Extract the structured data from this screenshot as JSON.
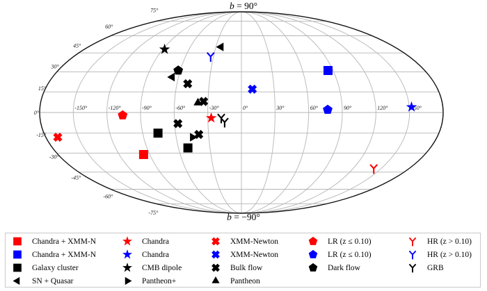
{
  "figure": {
    "title_top": {
      "var": "b",
      "rest": " = 90°"
    },
    "title_bottom": {
      "var": "b",
      "rest": " = −90°"
    }
  },
  "style": {
    "red": "#ff0000",
    "blue": "#0000ff",
    "black": "#000000",
    "grid_color": "#b5b5b5",
    "outline_color": "#111111",
    "legend_border": "#c9c9c9"
  },
  "chart_data": {
    "type": "scatter",
    "projection": "mollweide",
    "grid": {
      "lon_step": 30,
      "lat_step": 15,
      "lon_range": [
        -180,
        180
      ],
      "lat_range": [
        -90,
        90
      ]
    },
    "lon_tick_labels": [
      {
        "value": -150,
        "label": "-150°"
      },
      {
        "value": -120,
        "label": "-120°"
      },
      {
        "value": -90,
        "label": "-90°"
      },
      {
        "value": -60,
        "label": "-60°"
      },
      {
        "value": -30,
        "label": "-30°"
      },
      {
        "value": 0,
        "label": "0°"
      },
      {
        "value": 30,
        "label": "30°"
      },
      {
        "value": 60,
        "label": "60°"
      },
      {
        "value": 90,
        "label": "90°"
      },
      {
        "value": 120,
        "label": "120°"
      },
      {
        "value": 150,
        "label": "150°"
      }
    ],
    "lat_tick_labels": [
      {
        "value": 75,
        "label": "75°"
      },
      {
        "value": 60,
        "label": "60°"
      },
      {
        "value": 45,
        "label": "45°"
      },
      {
        "value": 30,
        "label": "30°"
      },
      {
        "value": 15,
        "label": "15°"
      },
      {
        "value": 0,
        "label": "0°"
      },
      {
        "value": -15,
        "label": "-15°"
      },
      {
        "value": -30,
        "label": "-30°"
      },
      {
        "value": -45,
        "label": "-45°"
      },
      {
        "value": -60,
        "label": "-60°"
      },
      {
        "value": -75,
        "label": "-75°"
      }
    ],
    "points": [
      {
        "series": "XMM-Newton",
        "marker": "x",
        "color": "#ff0000",
        "lon": -169,
        "lat": -18
      },
      {
        "series": "LR (z ≤ 0.10)",
        "marker": "pentagon",
        "color": "#ff0000",
        "lon": -106,
        "lat": -2
      },
      {
        "series": "Chandra + XMM-N",
        "marker": "square",
        "color": "#ff0000",
        "lon": -96,
        "lat": -31
      },
      {
        "series": "Chandra",
        "marker": "star",
        "color": "#ff0000",
        "lon": -27,
        "lat": -4
      },
      {
        "series": "HR (z > 0.10)",
        "marker": "y",
        "color": "#ff0000",
        "lon": 142,
        "lat": -42
      },
      {
        "series": "Chandra + XMM-N",
        "marker": "square",
        "color": "#0000ff",
        "lon": 85,
        "lat": 31
      },
      {
        "series": "XMM-Newton",
        "marker": "x",
        "color": "#0000ff",
        "lon": 10,
        "lat": 17
      },
      {
        "series": "LR (z ≤ 0.10)",
        "marker": "pentagon",
        "color": "#0000ff",
        "lon": 77,
        "lat": 2
      },
      {
        "series": "Chandra",
        "marker": "star",
        "color": "#0000ff",
        "lon": 152,
        "lat": 4
      },
      {
        "series": "HR (z > 0.10)",
        "marker": "y",
        "color": "#0000ff",
        "lon": -33,
        "lat": 42
      },
      {
        "series": "CMB dipole",
        "marker": "star",
        "color": "#000000",
        "lon": -88,
        "lat": 48
      },
      {
        "series": "SN + Quasar",
        "marker": "tri_left",
        "color": "#000000",
        "lon": -24,
        "lat": 50
      },
      {
        "series": "Dark flow",
        "marker": "pentagon",
        "color": "#000000",
        "lon": -62,
        "lat": 31
      },
      {
        "series": "SN + Quasar",
        "marker": "tri_left",
        "color": "#000000",
        "lon": -66,
        "lat": 26
      },
      {
        "series": "Bulk flow",
        "marker": "x",
        "color": "#000000",
        "lon": -50,
        "lat": 21
      },
      {
        "series": "Pantheon",
        "marker": "tri_up",
        "color": "#000000",
        "lon": -39,
        "lat": 7
      },
      {
        "series": "Bulk flow",
        "marker": "x",
        "color": "#000000",
        "lon": -34,
        "lat": 8
      },
      {
        "series": "Bulk flow",
        "marker": "x",
        "color": "#000000",
        "lon": -57,
        "lat": -8
      },
      {
        "series": "Galaxy cluster",
        "marker": "square",
        "color": "#000000",
        "lon": -76,
        "lat": -15
      },
      {
        "series": "Pantheon+",
        "marker": "tri_right",
        "color": "#000000",
        "lon": -45,
        "lat": -18
      },
      {
        "series": "Bulk flow",
        "marker": "x",
        "color": "#000000",
        "lon": -39,
        "lat": -16
      },
      {
        "series": "Galaxy cluster",
        "marker": "square",
        "color": "#000000",
        "lon": -51,
        "lat": -26
      },
      {
        "series": "GRB",
        "marker": "y",
        "color": "#000000",
        "lon": -18,
        "lat": -4
      },
      {
        "series": "GRB",
        "marker": "y",
        "color": "#000000",
        "lon": -15,
        "lat": -7
      }
    ]
  },
  "legend": {
    "columns": [
      [
        {
          "label": "Chandra + XMM-N",
          "marker": "square",
          "color": "#ff0000"
        },
        {
          "label": "Chandra + XMM-N",
          "marker": "square",
          "color": "#0000ff"
        },
        {
          "label": "Galaxy cluster",
          "marker": "square",
          "color": "#000000"
        },
        {
          "label": "SN + Quasar",
          "marker": "tri_left",
          "color": "#000000"
        }
      ],
      [
        {
          "label": "Chandra",
          "marker": "star",
          "color": "#ff0000"
        },
        {
          "label": "Chandra",
          "marker": "star",
          "color": "#0000ff"
        },
        {
          "label": "CMB dipole",
          "marker": "star",
          "color": "#000000"
        },
        {
          "label": "Pantheon+",
          "marker": "tri_right",
          "color": "#000000"
        }
      ],
      [
        {
          "label": "XMM-Newton",
          "marker": "x",
          "color": "#ff0000"
        },
        {
          "label": "XMM-Newton",
          "marker": "x",
          "color": "#0000ff"
        },
        {
          "label": "Bulk flow",
          "marker": "x",
          "color": "#000000"
        },
        {
          "label": "Pantheon",
          "marker": "tri_up",
          "color": "#000000"
        }
      ],
      [
        {
          "label": "LR (z ≤ 0.10)",
          "marker": "pentagon",
          "color": "#ff0000"
        },
        {
          "label": "LR (z ≤ 0.10)",
          "marker": "pentagon",
          "color": "#0000ff"
        },
        {
          "label": "Dark flow",
          "marker": "pentagon",
          "color": "#000000"
        }
      ],
      [
        {
          "label": "HR (z > 0.10)",
          "marker": "y",
          "color": "#ff0000"
        },
        {
          "label": "HR (z > 0.10)",
          "marker": "y",
          "color": "#0000ff"
        },
        {
          "label": "GRB",
          "marker": "y",
          "color": "#000000"
        }
      ]
    ]
  }
}
